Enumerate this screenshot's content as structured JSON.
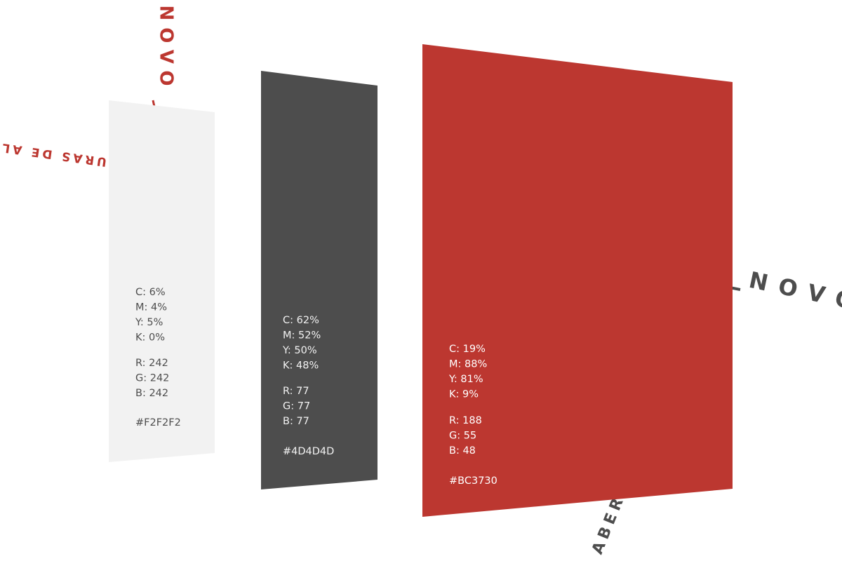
{
  "curved_texts": {
    "top": "NOVO",
    "left": "TURAS DE ALU",
    "right": "NOVO",
    "bottom": "ABER"
  },
  "swatches": [
    {
      "cmyk": [
        "C: 6%",
        "M: 4%",
        "Y: 5%",
        "K: 0%"
      ],
      "rgb": [
        "R: 242",
        "G: 242",
        "B: 242"
      ],
      "hex": "#F2F2F2"
    },
    {
      "cmyk": [
        "C: 62%",
        "M: 52%",
        "Y: 50%",
        "K: 48%"
      ],
      "rgb": [
        "R: 77",
        "G: 77",
        "B: 77"
      ],
      "hex": "#4D4D4D"
    },
    {
      "cmyk": [
        "C: 19%",
        "M: 88%",
        "Y: 81%",
        "K: 9%"
      ],
      "rgb": [
        "R: 188",
        "G: 55",
        "B: 48"
      ],
      "hex": "#BC3730"
    }
  ]
}
